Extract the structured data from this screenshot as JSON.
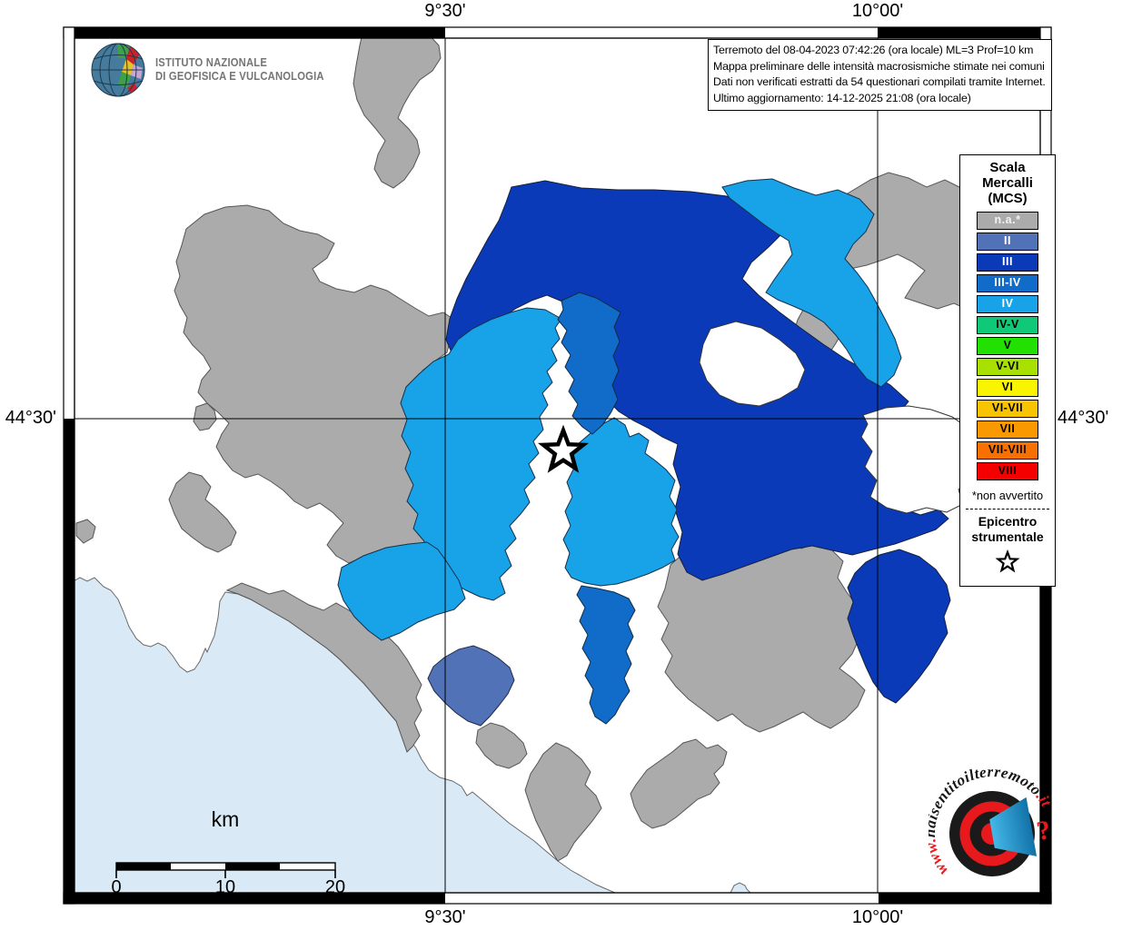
{
  "info_box": {
    "lines": [
      "Terremoto del 08-04-2023 07:42:26 (ora locale) ML=3 Prof=10 km",
      "Mappa preliminare delle intensità macrosismiche stimate nei comuni",
      "Dati non verificati estratti da 54 questionari compilati tramite Internet.",
      "Ultimo aggiornamento: 14-12-2025 21:08 (ora locale)"
    ]
  },
  "map": {
    "axes": {
      "top": [
        "9°30'",
        "10°00'"
      ],
      "bottom": [
        "9°30'",
        "10°00'"
      ],
      "left": "44°30'",
      "right": "44°30'"
    },
    "scale_bar": {
      "label": "km",
      "ticks": [
        "0",
        "10",
        "20"
      ]
    },
    "sea_color": "#D9EAF6",
    "epicenter": {
      "symbol": "star"
    }
  },
  "legend": {
    "title_lines": [
      "Scala",
      "Mercalli",
      "(MCS)"
    ],
    "levels": [
      {
        "key": "na",
        "label": "n.a.*",
        "color": "#ABABAB",
        "text": "#F2F2F2"
      },
      {
        "key": "II",
        "label": "II",
        "color": "#5272B8",
        "text": "#FFFFFF"
      },
      {
        "key": "III",
        "label": "III",
        "color": "#0A3AB8",
        "text": "#FFFFFF"
      },
      {
        "key": "III-IV",
        "label": "III-IV",
        "color": "#106CC8",
        "text": "#FFFFFF"
      },
      {
        "key": "IV",
        "label": "IV",
        "color": "#18A2E8",
        "text": "#FFFFFF"
      },
      {
        "key": "IV-V",
        "label": "IV-V",
        "color": "#0FC878",
        "text": "#000000"
      },
      {
        "key": "V",
        "label": "V",
        "color": "#22E000",
        "text": "#000000"
      },
      {
        "key": "V-VI",
        "label": "V-VI",
        "color": "#A8E000",
        "text": "#000000"
      },
      {
        "key": "VI",
        "label": "VI",
        "color": "#F9F500",
        "text": "#000000"
      },
      {
        "key": "VI-VII",
        "label": "VI-VII",
        "color": "#F8C400",
        "text": "#000000"
      },
      {
        "key": "VII",
        "label": "VII",
        "color": "#FA9800",
        "text": "#000000"
      },
      {
        "key": "VII-VIII",
        "label": "VII-VIII",
        "color": "#F87100",
        "text": "#000000"
      },
      {
        "key": "VIII",
        "label": "VIII",
        "color": "#F50000",
        "text": "#000000"
      }
    ],
    "footnote": "*non avvertito",
    "epicenter_label_lines": [
      "Epicentro",
      "strumentale"
    ]
  },
  "ingv": {
    "line1": "ISTITUTO NAZIONALE",
    "line2": "DI GEOFISICA E VULCANOLOGIA"
  },
  "hsit_logo": {
    "prefix": "www.",
    "site": "haisentitoilterremoto",
    "tld": ".it",
    "qmark": "?"
  }
}
